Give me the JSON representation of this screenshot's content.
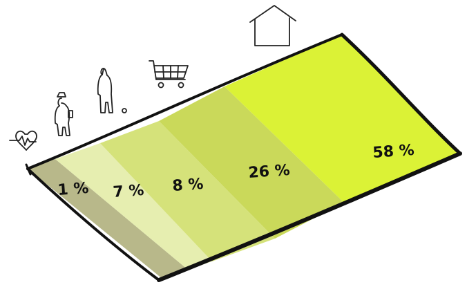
{
  "chart_data": {
    "type": "area",
    "categories": [
      "health",
      "work",
      "leisure",
      "shopping",
      "housing"
    ],
    "values": [
      1,
      7,
      8,
      26,
      58
    ],
    "labels": [
      "1 %",
      "7 %",
      "8 %",
      "26 %",
      "58 %"
    ],
    "unit": "%",
    "icons": [
      "heart-icon",
      "worker-icon",
      "person-icon",
      "shopping-cart-icon",
      "house-icon"
    ],
    "colors": [
      "#b8b88a",
      "#e6eeb0",
      "#d5e27a",
      "#cad95a",
      "#dbf236"
    ]
  }
}
